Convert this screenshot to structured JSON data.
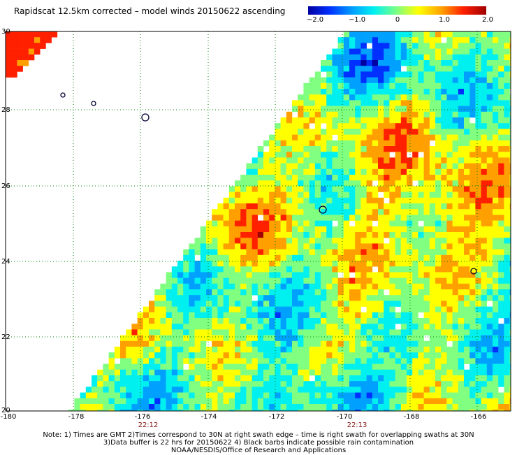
{
  "title": "Rapidscat 12.5km corrected – model winds 20150622 ascending",
  "colorbar": {
    "ticks": [
      "−2.0",
      "−1.0",
      "0",
      "1.0",
      "2.0"
    ],
    "range": [
      -2.0,
      2.0
    ]
  },
  "axes": {
    "lat_ticks": [
      "30",
      "28",
      "26",
      "24",
      "22",
      "20"
    ],
    "lon_ticks": [
      "-180",
      "-178",
      "-176",
      "-174",
      "-172",
      "-170",
      "-168",
      "-166"
    ],
    "lat_range": [
      20,
      30
    ],
    "lon_range": [
      -180,
      -165
    ]
  },
  "time_labels": [
    "22:12",
    "22:13"
  ],
  "notes": {
    "line1": "Note: 1) Times are GMT 2)Times correspond to 30N at right swath edge – time is right swath for overlapping swaths at 30N",
    "line2": "3)Data buffer is 22 hrs for 20150622 4) Black barbs indicate possible rain contamination",
    "line3": "NOAA/NESDIS/Office of Research and Applications"
  },
  "colors": {
    "palette": [
      "#0000a0",
      "#0030ff",
      "#00a0ff",
      "#00f0f0",
      "#80ff80",
      "#ffff00",
      "#ffa000",
      "#ff2000",
      "#a00000"
    ],
    "grid": "#008000",
    "time_label": "#8B1A1A"
  }
}
